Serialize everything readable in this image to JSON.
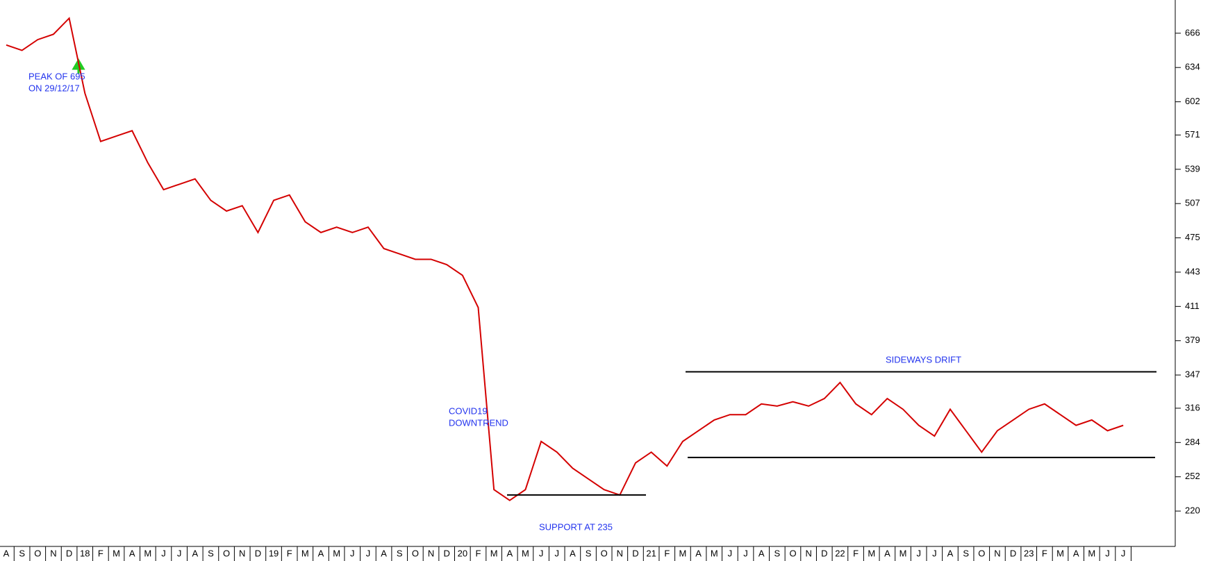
{
  "chart_data": {
    "type": "line",
    "categories": [
      "A",
      "S",
      "O",
      "N",
      "D",
      "18",
      "F",
      "M",
      "A",
      "M",
      "J",
      "J",
      "A",
      "S",
      "O",
      "N",
      "D",
      "19",
      "F",
      "M",
      "A",
      "M",
      "J",
      "J",
      "A",
      "S",
      "O",
      "N",
      "D",
      "20",
      "F",
      "M",
      "A",
      "M",
      "J",
      "J",
      "A",
      "S",
      "O",
      "N",
      "D",
      "21",
      "F",
      "M",
      "A",
      "M",
      "J",
      "J",
      "A",
      "S",
      "O",
      "N",
      "D",
      "22",
      "F",
      "M",
      "A",
      "M",
      "J",
      "J",
      "A",
      "S",
      "O",
      "N",
      "D",
      "23",
      "F",
      "M",
      "A",
      "M",
      "J",
      "J"
    ],
    "series": [
      {
        "color": "#d40000",
        "values": [
          655,
          650,
          660,
          665,
          680,
          610,
          565,
          570,
          575,
          545,
          520,
          525,
          530,
          510,
          500,
          505,
          480,
          510,
          515,
          490,
          480,
          485,
          480,
          485,
          465,
          460,
          455,
          455,
          450,
          440,
          410,
          240,
          230,
          240,
          285,
          275,
          260,
          250,
          240,
          235,
          265,
          275,
          262,
          285,
          295,
          305,
          310,
          310,
          320,
          318,
          322,
          318,
          325,
          340,
          320,
          310,
          325,
          315,
          300,
          290,
          315,
          295,
          275,
          295,
          305,
          315,
          320,
          310,
          300,
          305,
          295,
          300
        ]
      }
    ],
    "ylim": [
      187,
      697
    ],
    "yticks": [
      220,
      252,
      284,
      316,
      347,
      379,
      411,
      443,
      475,
      507,
      539,
      571,
      602,
      634,
      666
    ],
    "annotations": [
      "PEAK OF 695",
      "ON 29/12/17",
      "COVID19",
      "DOWNTREND",
      "SUPPORT AT 235",
      "SIDEWAYS DRIFT"
    ],
    "reference_lines": [
      235,
      350,
      270
    ]
  }
}
